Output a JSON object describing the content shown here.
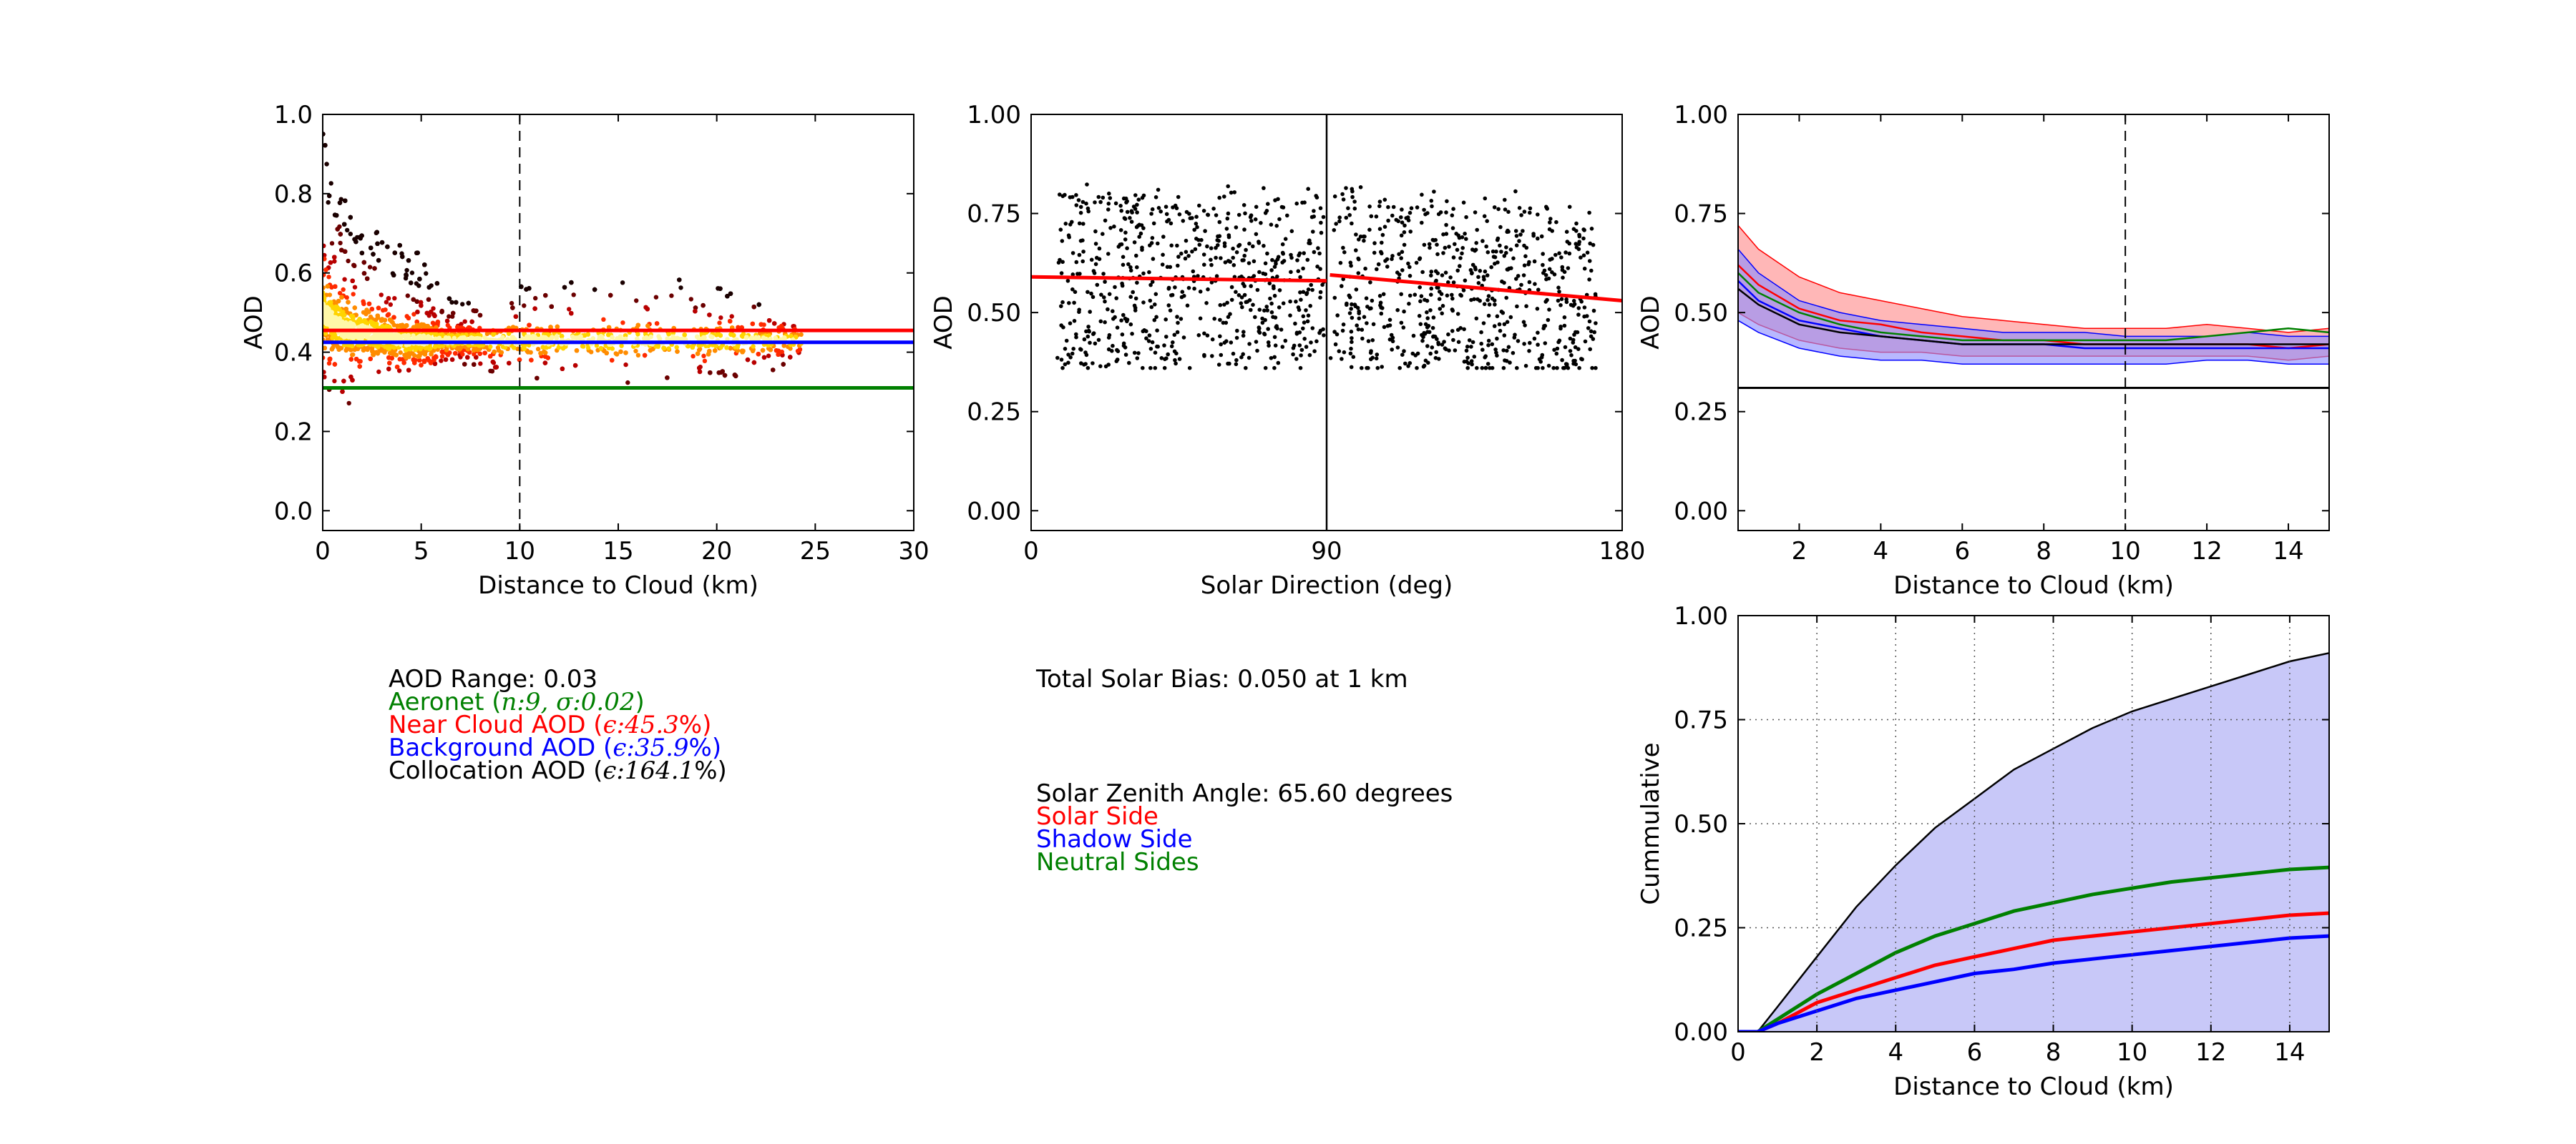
{
  "colors": {
    "red": "#ff0000",
    "blue": "#0000ff",
    "green": "#008000",
    "black": "#000000",
    "cum_fill": "#c8c8f8",
    "band_red": "#ff8a8a",
    "band_blue": "#8c8cff"
  },
  "chart_data": [
    {
      "id": "aod_vs_distance",
      "type": "scatter",
      "subtype": "density-colored scatter (hot colormap)",
      "xlabel": "Distance to Cloud (km)",
      "ylabel": "AOD",
      "xlim": [
        0,
        30
      ],
      "ylim": [
        -0.05,
        1.0
      ],
      "xticks": [
        "0",
        "5",
        "10",
        "15",
        "20",
        "25",
        "30"
      ],
      "yticks": [
        "0.0",
        "0.2",
        "0.4",
        "0.6",
        "0.8",
        "1.0"
      ],
      "vline": {
        "x": 10,
        "style": "dashed"
      },
      "hlines": [
        {
          "name": "Near Cloud AOD",
          "y": 0.455,
          "color": "red"
        },
        {
          "name": "Background AOD",
          "y": 0.425,
          "color": "blue"
        },
        {
          "name": "Aeronet",
          "y": 0.31,
          "color": "green"
        }
      ],
      "envelope": {
        "x": [
          0.0,
          0.3,
          0.7,
          1.0,
          2.0,
          3.0,
          4.0,
          5.0,
          5.5,
          6.0,
          7.0,
          8.0,
          9.0,
          10.0,
          12.0,
          15.0,
          18.0,
          20.0,
          22.0,
          24.0,
          24.3
        ],
        "upper": [
          1.0,
          0.85,
          0.82,
          0.79,
          0.74,
          0.7,
          0.67,
          0.65,
          0.62,
          0.55,
          0.52,
          0.54,
          0.56,
          0.6,
          0.58,
          0.58,
          0.59,
          0.58,
          0.53,
          0.5,
          0.47
        ],
        "lower": [
          0.33,
          0.31,
          0.25,
          0.23,
          0.3,
          0.33,
          0.35,
          0.35,
          0.35,
          0.36,
          0.36,
          0.35,
          0.34,
          0.33,
          0.33,
          0.3,
          0.33,
          0.33,
          0.34,
          0.35,
          0.36
        ],
        "core": [
          0.5,
          0.49,
          0.47,
          0.46,
          0.45,
          0.44,
          0.43,
          0.43,
          0.43,
          0.43,
          0.43,
          0.43,
          0.43,
          0.43,
          0.43,
          0.43,
          0.43,
          0.43,
          0.43,
          0.43,
          0.43
        ]
      }
    },
    {
      "id": "aod_vs_solar_direction",
      "type": "scatter",
      "xlabel": "Solar Direction (deg)",
      "ylabel": "AOD",
      "xlim": [
        0,
        180
      ],
      "ylim": [
        -0.05,
        1.0
      ],
      "xticks": [
        "0",
        "90",
        "180"
      ],
      "yticks": [
        "0.00",
        "0.25",
        "0.50",
        "0.75",
        "1.00"
      ],
      "vline": {
        "x": 90,
        "style": "solid"
      },
      "points_range": {
        "x": [
          8,
          172
        ],
        "y": [
          0.36,
          0.87
        ]
      },
      "fit_line": {
        "color": "red",
        "x": [
          0,
          90,
          91,
          180
        ],
        "y": [
          0.59,
          0.58,
          0.595,
          0.53
        ]
      }
    },
    {
      "id": "aod_bands_vs_distance",
      "type": "line",
      "xlabel": "Distance to Cloud (km)",
      "ylabel": "AOD",
      "xlim": [
        0.5,
        15
      ],
      "ylim": [
        -0.05,
        1.0
      ],
      "xticks": [
        "2",
        "4",
        "6",
        "8",
        "10",
        "12",
        "14"
      ],
      "yticks": [
        "0.00",
        "0.25",
        "0.50",
        "0.75",
        "1.00"
      ],
      "vline": {
        "x": 10,
        "style": "dashed"
      },
      "hline": {
        "y": 0.31,
        "color": "black"
      },
      "x": [
        0.5,
        1,
        2,
        3,
        4,
        5,
        6,
        7,
        8,
        9,
        10,
        11,
        12,
        13,
        14,
        15
      ],
      "bands": [
        {
          "name": "Solar Side",
          "color": "red",
          "upper": [
            0.72,
            0.66,
            0.59,
            0.55,
            0.53,
            0.51,
            0.49,
            0.48,
            0.47,
            0.46,
            0.46,
            0.46,
            0.47,
            0.46,
            0.45,
            0.46
          ],
          "lower": [
            0.5,
            0.47,
            0.43,
            0.41,
            0.4,
            0.4,
            0.39,
            0.39,
            0.39,
            0.39,
            0.39,
            0.39,
            0.39,
            0.39,
            0.38,
            0.39
          ]
        },
        {
          "name": "Shadow Side",
          "color": "blue",
          "upper": [
            0.66,
            0.6,
            0.53,
            0.5,
            0.48,
            0.47,
            0.46,
            0.45,
            0.45,
            0.45,
            0.44,
            0.44,
            0.44,
            0.45,
            0.44,
            0.44
          ],
          "lower": [
            0.48,
            0.45,
            0.41,
            0.39,
            0.38,
            0.38,
            0.37,
            0.37,
            0.37,
            0.37,
            0.37,
            0.37,
            0.38,
            0.38,
            0.37,
            0.37
          ]
        }
      ],
      "series": [
        {
          "name": "Solar Side",
          "color": "red",
          "values": [
            0.62,
            0.57,
            0.51,
            0.48,
            0.47,
            0.45,
            0.44,
            0.43,
            0.43,
            0.42,
            0.42,
            0.42,
            0.42,
            0.42,
            0.41,
            0.42
          ]
        },
        {
          "name": "Shadow Side",
          "color": "blue",
          "values": [
            0.58,
            0.53,
            0.48,
            0.46,
            0.44,
            0.43,
            0.42,
            0.42,
            0.42,
            0.41,
            0.41,
            0.41,
            0.41,
            0.41,
            0.41,
            0.41
          ]
        },
        {
          "name": "Neutral Sides",
          "color": "green",
          "values": [
            0.6,
            0.55,
            0.5,
            0.47,
            0.45,
            0.44,
            0.43,
            0.43,
            0.43,
            0.43,
            0.43,
            0.43,
            0.44,
            0.45,
            0.46,
            0.45
          ]
        },
        {
          "name": "",
          "color": "black",
          "values": [
            0.56,
            0.52,
            0.47,
            0.45,
            0.44,
            0.43,
            0.42,
            0.42,
            0.42,
            0.42,
            0.42,
            0.42,
            0.42,
            0.42,
            0.42,
            0.42
          ]
        }
      ]
    },
    {
      "id": "cumulative_vs_distance",
      "type": "area",
      "xlabel": "Distance to Cloud (km)",
      "ylabel": "Cummulative",
      "xlim": [
        0,
        15
      ],
      "ylim": [
        0,
        1.0
      ],
      "xticks": [
        "0",
        "2",
        "4",
        "6",
        "8",
        "10",
        "12",
        "14"
      ],
      "yticks": [
        "0.00",
        "0.25",
        "0.50",
        "0.75",
        "1.00"
      ],
      "grid": true,
      "x": [
        0,
        0.5,
        1,
        2,
        3,
        4,
        5,
        6,
        7,
        8,
        9,
        10,
        11,
        12,
        13,
        14,
        15
      ],
      "series": [
        {
          "name": "",
          "color": "black",
          "filled": true,
          "values": [
            0,
            0.0,
            0.06,
            0.18,
            0.3,
            0.4,
            0.49,
            0.56,
            0.63,
            0.68,
            0.73,
            0.77,
            0.8,
            0.83,
            0.86,
            0.89,
            0.91
          ]
        },
        {
          "name": "Neutral Sides",
          "color": "green",
          "values": [
            0,
            0.0,
            0.03,
            0.09,
            0.14,
            0.19,
            0.23,
            0.26,
            0.29,
            0.31,
            0.33,
            0.345,
            0.36,
            0.37,
            0.38,
            0.39,
            0.395
          ]
        },
        {
          "name": "Solar Side",
          "color": "red",
          "values": [
            0,
            0.0,
            0.02,
            0.07,
            0.1,
            0.13,
            0.16,
            0.18,
            0.2,
            0.22,
            0.23,
            0.24,
            0.25,
            0.26,
            0.27,
            0.28,
            0.285
          ]
        },
        {
          "name": "Shadow Side",
          "color": "blue",
          "values": [
            0,
            0.0,
            0.02,
            0.05,
            0.08,
            0.1,
            0.12,
            0.14,
            0.15,
            0.165,
            0.175,
            0.185,
            0.195,
            0.205,
            0.215,
            0.225,
            0.23
          ]
        }
      ]
    }
  ],
  "stats_left": {
    "aod_range": "AOD Range: 0.03",
    "aeronet_prefix": "Aeronet (",
    "aeronet_math": "n:9, σ:0.02",
    "aeronet_suffix": ")",
    "near_prefix": "Near Cloud AOD (",
    "near_math": "ϵ:45.3",
    "near_suffix": "%)",
    "background_prefix": "Background AOD (",
    "background_math": "ϵ:35.9",
    "background_suffix": "%)",
    "collocation_prefix": "Collocation AOD (",
    "collocation_math": "ϵ:164.1",
    "collocation_suffix": "%)"
  },
  "stats_mid": {
    "total_bias": "Total Solar Bias: 0.050 at 1 km",
    "zenith": "Solar Zenith Angle: 65.60 degrees",
    "solar_side": "Solar Side",
    "shadow_side": "Shadow Side",
    "neutral_sides": "Neutral Sides"
  }
}
